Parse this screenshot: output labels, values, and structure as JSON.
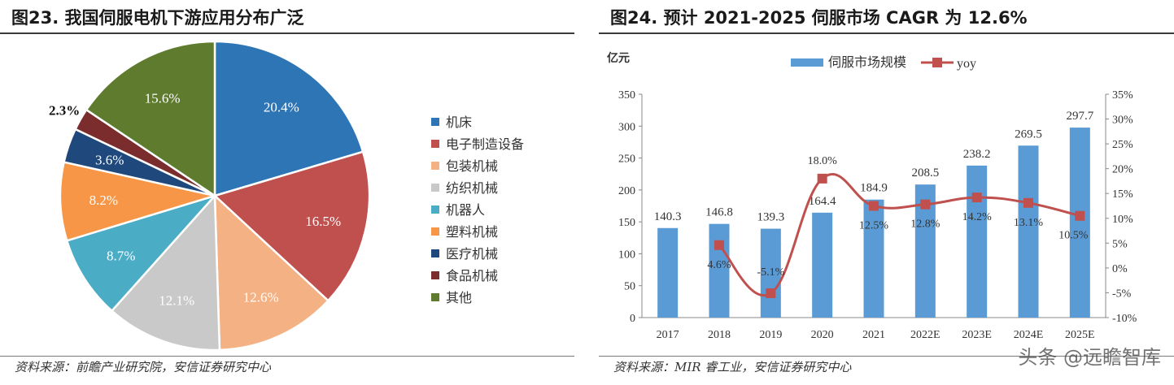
{
  "left": {
    "title": "图23. 我国伺服电机下游应用分布广泛",
    "source": "资料来源：前瞻产业研究院，安信证券研究中心"
  },
  "right": {
    "title": "图24. 预计 2021-2025 伺服市场 CAGR 为 12.6%",
    "source": "资料来源：MIR 睿工业，安信证券研究中心"
  },
  "watermark": "头条 @远瞻智库",
  "chart_data": [
    {
      "type": "pie",
      "title": "",
      "slices": [
        {
          "name": "机床",
          "value": 20.4,
          "label": "20.4%",
          "color": "#2E75B6"
        },
        {
          "name": "电子制造设备",
          "value": 16.5,
          "label": "16.5%",
          "color": "#C0504D"
        },
        {
          "name": "包装机械",
          "value": 12.6,
          "label": "12.6%",
          "color": "#F4B183"
        },
        {
          "name": "纺织机械",
          "value": 12.1,
          "label": "12.1%",
          "color": "#C9C9C9"
        },
        {
          "name": "机器人",
          "value": 8.7,
          "label": "8.7%",
          "color": "#4BACC6"
        },
        {
          "name": "塑料机械",
          "value": 8.2,
          "label": "8.2%",
          "color": "#F79646"
        },
        {
          "name": "医疗机械",
          "value": 3.6,
          "label": "3.6%",
          "color": "#1F497D"
        },
        {
          "name": "食品机械",
          "value": 2.3,
          "label": "2.3%",
          "color": "#7B2C2C"
        },
        {
          "name": "其他",
          "value": 15.6,
          "label": "15.6%",
          "color": "#5E7B2E"
        }
      ],
      "legend_position": "right"
    },
    {
      "type": "bar",
      "title": "",
      "unit_label": "亿元",
      "categories": [
        "2017",
        "2018",
        "2019",
        "2020",
        "2021",
        "2022E",
        "2023E",
        "2024E",
        "2025E"
      ],
      "series": [
        {
          "name": "伺服市场规模",
          "type": "bar",
          "axis": "left",
          "color": "#5B9BD5",
          "values": [
            140.3,
            146.8,
            139.3,
            164.4,
            184.9,
            208.5,
            238.2,
            269.5,
            297.7
          ],
          "labels": [
            "140.3",
            "146.8",
            "139.3",
            "164.4",
            "184.9",
            "208.5",
            "238.2",
            "269.5",
            "297.7"
          ]
        },
        {
          "name": "yoy",
          "type": "line",
          "axis": "right",
          "color": "#C0504D",
          "values": [
            null,
            4.6,
            -5.1,
            18.0,
            12.5,
            12.8,
            14.2,
            13.1,
            10.5
          ],
          "labels": [
            "",
            "4.6%",
            "-5.1%",
            "18.0%",
            "12.5%",
            "12.8%",
            "14.2%",
            "13.1%",
            "10.5%"
          ]
        }
      ],
      "y_left": {
        "min": 0,
        "max": 350,
        "step": 50,
        "ticks": [
          "0",
          "50",
          "100",
          "150",
          "200",
          "250",
          "300",
          "350"
        ]
      },
      "y_right": {
        "min": -10,
        "max": 35,
        "step": 5,
        "ticks": [
          "-10%",
          "-5%",
          "0%",
          "5%",
          "10%",
          "15%",
          "20%",
          "25%",
          "30%",
          "35%"
        ]
      },
      "grid": false,
      "legend_position": "top"
    }
  ]
}
